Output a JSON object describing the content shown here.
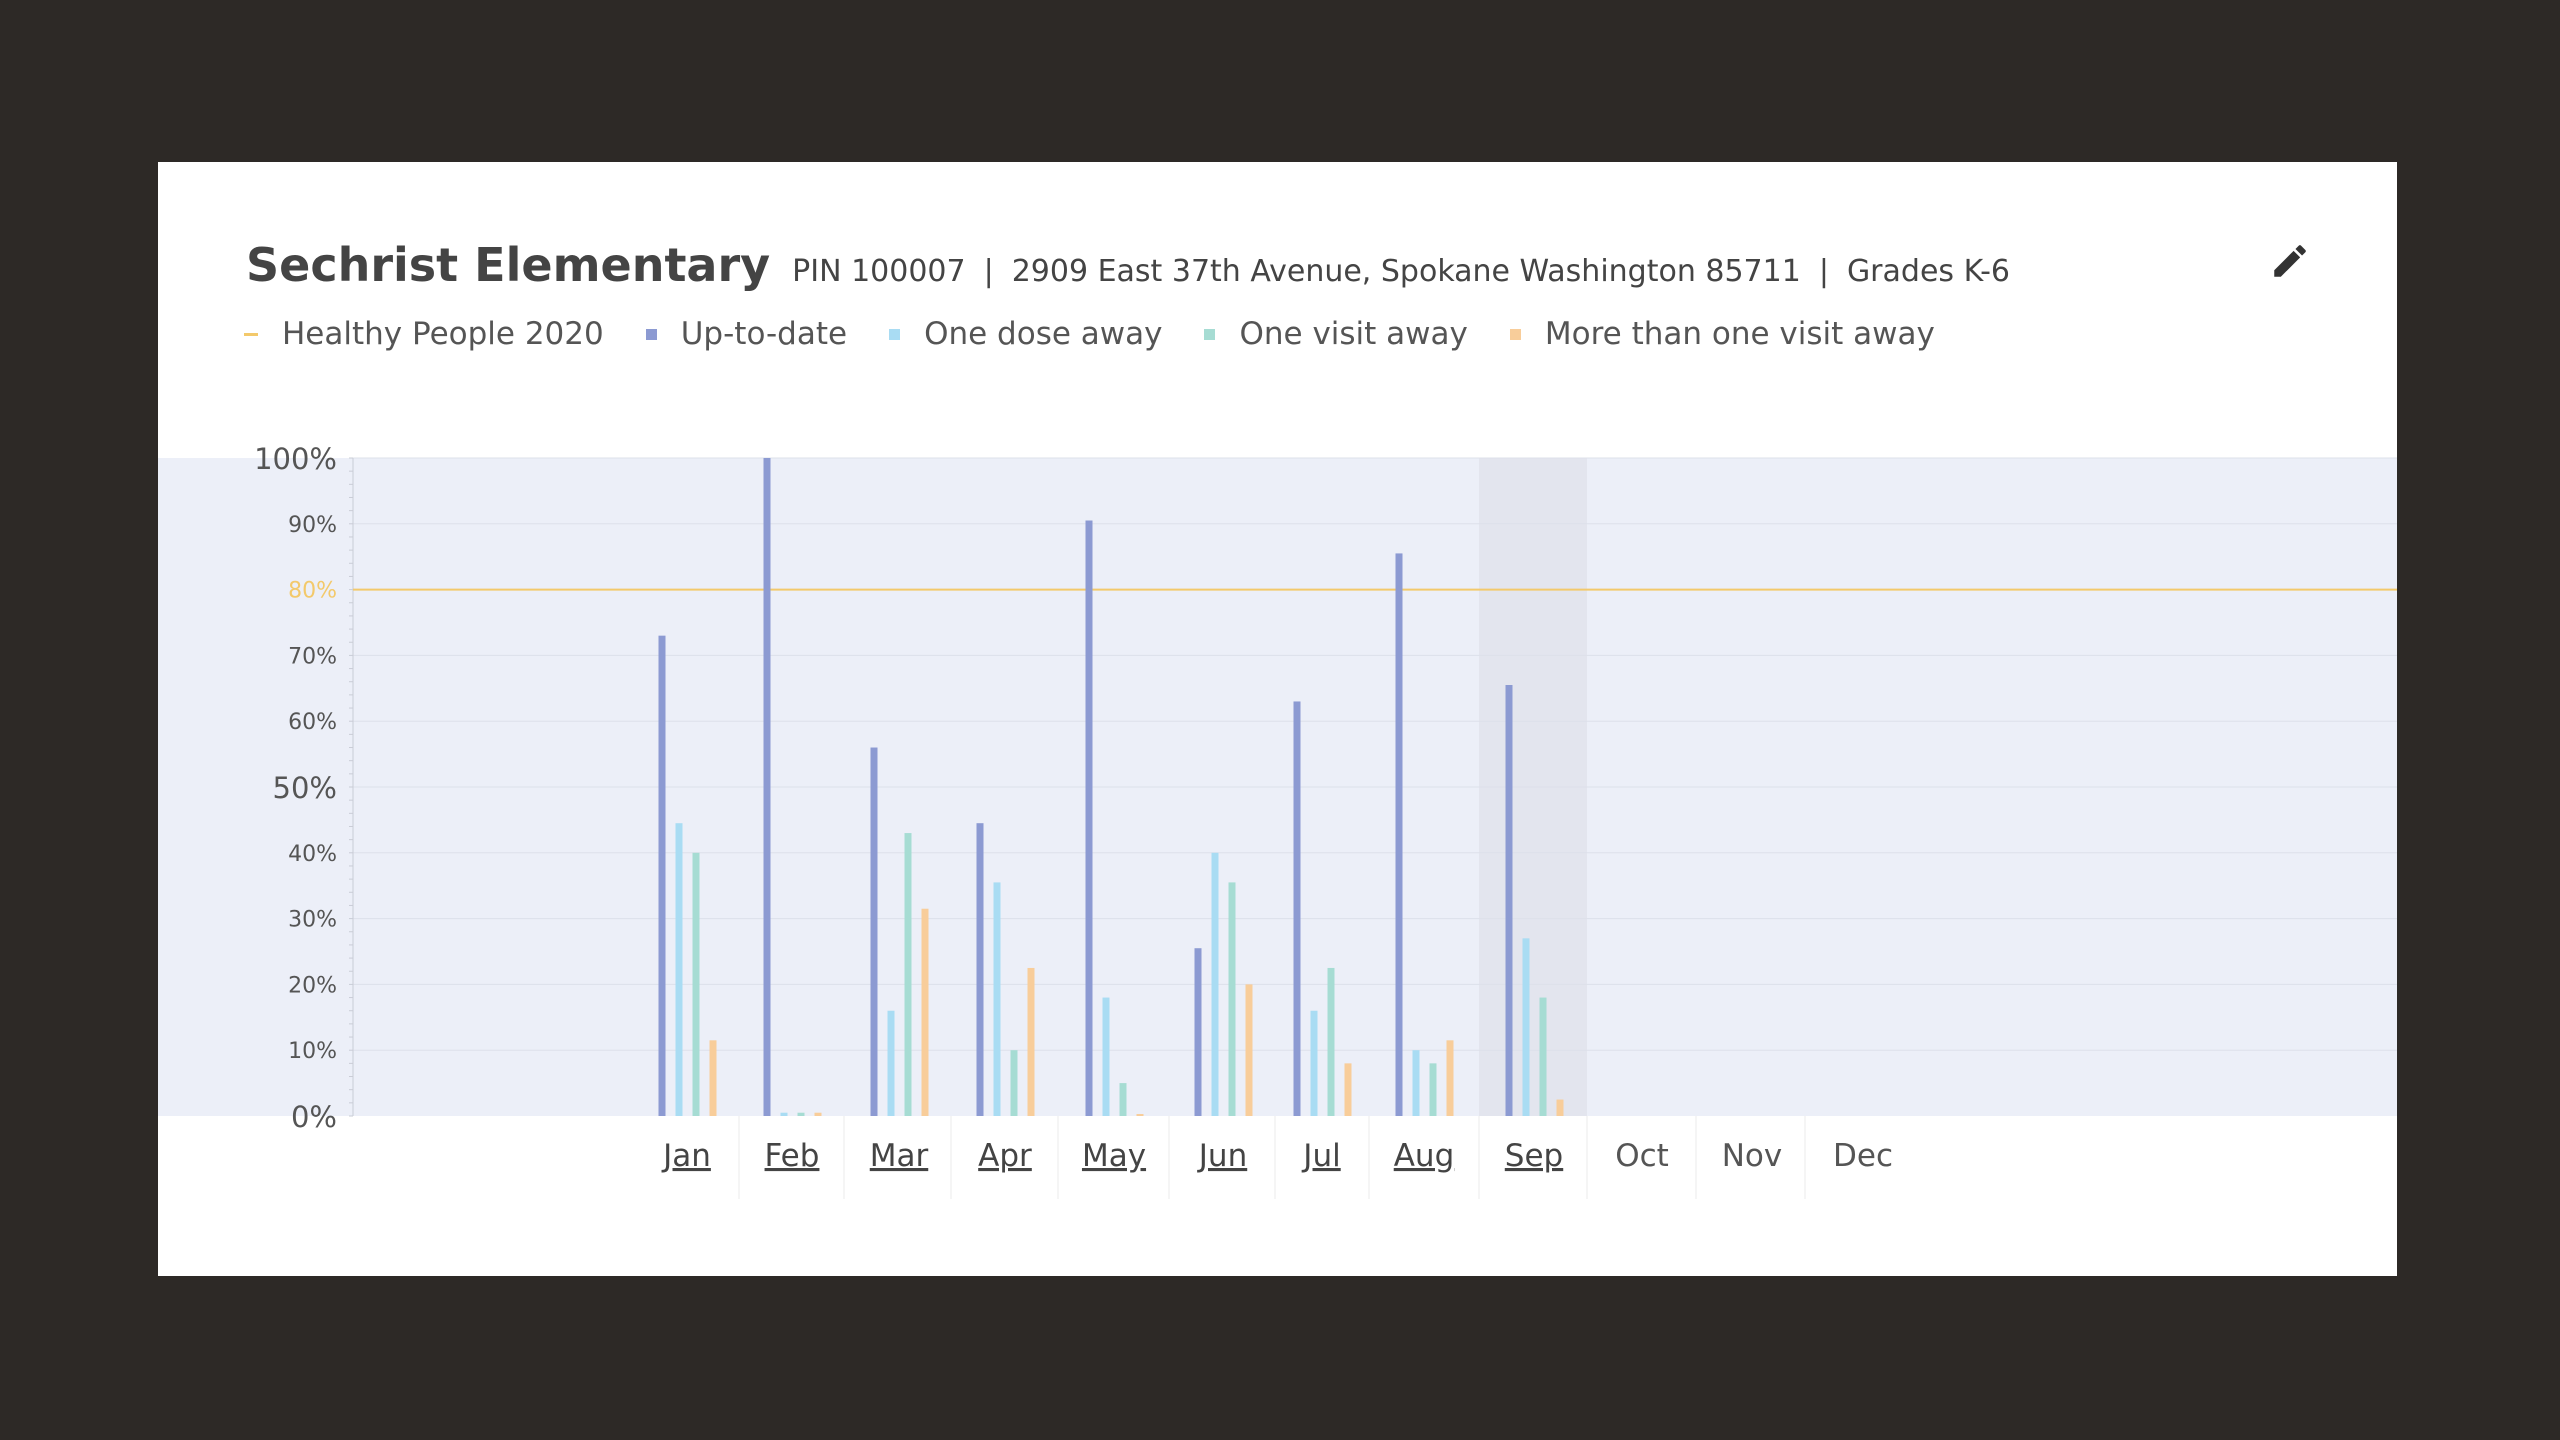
{
  "header": {
    "school_name": "Sechrist Elementary",
    "pin": "PIN 100007",
    "address": "2909 East 37th Avenue, Spokane Washington 85711",
    "grades": "Grades K-6",
    "separator": "|",
    "edit_icon": "pencil-icon"
  },
  "legend": [
    {
      "label": "Healthy People 2020",
      "color": "#f3c96b",
      "kind": "line"
    },
    {
      "label": "Up-to-date",
      "color": "#8c9ad2",
      "kind": "square"
    },
    {
      "label": "One dose away",
      "color": "#a9dcf3",
      "kind": "square"
    },
    {
      "label": "One visit away",
      "color": "#a6dcd3",
      "kind": "square"
    },
    {
      "label": "More than one visit away",
      "color": "#f8cd9a",
      "kind": "square"
    }
  ],
  "colors": {
    "page_background": "#2d2926",
    "plot_background": "#eceff8",
    "selected_month_band": "#e3e5ee",
    "target_line": "#f3c96b"
  },
  "chart_data": {
    "type": "bar",
    "categories": [
      "Jan",
      "Feb",
      "Mar",
      "Apr",
      "May",
      "Jun",
      "Jul",
      "Aug",
      "Sep",
      "Oct",
      "Nov",
      "Dec"
    ],
    "category_links": [
      true,
      true,
      true,
      true,
      true,
      true,
      true,
      true,
      true,
      false,
      false,
      false
    ],
    "selected_category": "Sep",
    "series": [
      {
        "name": "Up-to-date",
        "color": "#8c9ad2",
        "values": [
          73,
          100,
          56,
          44.5,
          90.5,
          25.5,
          63,
          85.5,
          65.5,
          null,
          null,
          null
        ]
      },
      {
        "name": "One dose away",
        "color": "#a9dcf3",
        "values": [
          44.5,
          0.5,
          16,
          35.5,
          18,
          40,
          16,
          10,
          27,
          null,
          null,
          null
        ]
      },
      {
        "name": "One visit away",
        "color": "#a6dcd3",
        "values": [
          40,
          0.5,
          43,
          10,
          5,
          35.5,
          22.5,
          8,
          18,
          null,
          null,
          null
        ]
      },
      {
        "name": "More than one visit away",
        "color": "#f8cd9a",
        "values": [
          11.5,
          0.5,
          31.5,
          22.5,
          0.3,
          20,
          8,
          11.5,
          2.5,
          null,
          null,
          null
        ]
      }
    ],
    "target": {
      "name": "Healthy People 2020",
      "value": 80,
      "label": "80%"
    },
    "y_ticks": [
      {
        "value": 0,
        "label": "0%",
        "major": true
      },
      {
        "value": 10,
        "label": "10%",
        "major": false
      },
      {
        "value": 20,
        "label": "20%",
        "major": false
      },
      {
        "value": 30,
        "label": "30%",
        "major": false
      },
      {
        "value": 40,
        "label": "40%",
        "major": false
      },
      {
        "value": 50,
        "label": "50%",
        "major": true
      },
      {
        "value": 60,
        "label": "60%",
        "major": false
      },
      {
        "value": 70,
        "label": "70%",
        "major": false
      },
      {
        "value": 90,
        "label": "90%",
        "major": false
      },
      {
        "value": 100,
        "label": "100%",
        "major": true
      }
    ],
    "ylim": [
      0,
      100
    ],
    "grid": true,
    "legend_position": "top-left"
  }
}
